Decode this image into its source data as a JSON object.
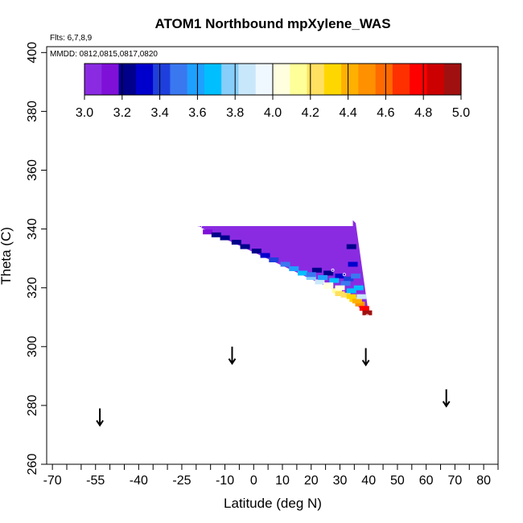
{
  "chart_data": {
    "type": "heatmap",
    "title": "ATOM1 Northbound mpXylene_WAS",
    "flights_note": "Flts: 6,7,8,9",
    "dates_note": "MMDD: 0812,0815,0817,0820",
    "xlabel": "Latitude (deg N)",
    "ylabel": "Theta (C)",
    "xlim": [
      -72,
      85
    ],
    "ylim": [
      260,
      402
    ],
    "xticks": [
      -70,
      -65,
      -60,
      -55,
      -50,
      -45,
      -40,
      -35,
      -30,
      -25,
      -20,
      -15,
      -10,
      -5,
      0,
      5,
      10,
      15,
      20,
      25,
      30,
      35,
      40,
      45,
      50,
      55,
      60,
      65,
      70,
      75,
      80,
      85
    ],
    "xtick_labels": [
      {
        "value": -70,
        "label": "-70"
      },
      {
        "value": -55,
        "label": "-55"
      },
      {
        "value": -40,
        "label": "-40"
      },
      {
        "value": -25,
        "label": "-25"
      },
      {
        "value": -10,
        "label": "-10"
      },
      {
        "value": 0,
        "label": "0"
      },
      {
        "value": 10,
        "label": "10"
      },
      {
        "value": 20,
        "label": "20"
      },
      {
        "value": 30,
        "label": "30"
      },
      {
        "value": 40,
        "label": "40"
      },
      {
        "value": 50,
        "label": "50"
      },
      {
        "value": 60,
        "label": "60"
      },
      {
        "value": 70,
        "label": "70"
      },
      {
        "value": 80,
        "label": "80"
      }
    ],
    "yticks": [
      260,
      280,
      300,
      320,
      340,
      360,
      380,
      400
    ],
    "colorbar": {
      "min": 3.0,
      "max": 5.0,
      "tick_labels": [
        "3.0",
        "3.2",
        "3.4",
        "3.6",
        "3.8",
        "4.0",
        "4.2",
        "4.4",
        "4.6",
        "4.8",
        "5.0"
      ],
      "colors": [
        "#8a2be2",
        "#7f10d8",
        "#00008b",
        "#0000cd",
        "#1e3fdc",
        "#3a78f0",
        "#1ea0ff",
        "#00bfff",
        "#87cefa",
        "#c9e7fb",
        "#f0f8ff",
        "#ffffe0",
        "#ffff99",
        "#ffe060",
        "#ffd700",
        "#ffb000",
        "#ff9000",
        "#ff6a00",
        "#ff3000",
        "#ff0000",
        "#cc0000",
        "#a01010"
      ]
    },
    "fill_region": {
      "description": "valid interpolation region",
      "vertices": [
        [
          -19.5,
          341
        ],
        [
          34.5,
          341
        ],
        [
          34.5,
          343
        ],
        [
          35.5,
          342
        ],
        [
          40,
          311
        ],
        [
          37,
          313
        ],
        [
          33,
          317
        ]
      ],
      "base_value": 3.0
    },
    "cells": [
      {
        "lat": -16,
        "theta": 339,
        "value": 3.1
      },
      {
        "lat": -13,
        "theta": 338,
        "value": 3.2
      },
      {
        "lat": -10,
        "theta": 337,
        "value": 3.2
      },
      {
        "lat": -6,
        "theta": 335.5,
        "value": 3.2
      },
      {
        "lat": -3,
        "theta": 334,
        "value": 3.2
      },
      {
        "lat": 1,
        "theta": 332.5,
        "value": 3.25
      },
      {
        "lat": 4,
        "theta": 331,
        "value": 3.3
      },
      {
        "lat": 7,
        "theta": 329.5,
        "value": 3.4
      },
      {
        "lat": 11,
        "theta": 328,
        "value": 3.5
      },
      {
        "lat": 14,
        "theta": 326.5,
        "value": 3.6
      },
      {
        "lat": 17,
        "theta": 325,
        "value": 3.7
      },
      {
        "lat": 20,
        "theta": 323.5,
        "value": 3.8
      },
      {
        "lat": 23,
        "theta": 322,
        "value": 3.9
      },
      {
        "lat": 26,
        "theta": 320.5,
        "value": 4.0
      },
      {
        "lat": 29,
        "theta": 319,
        "value": 4.1
      },
      {
        "lat": 32,
        "theta": 317.5,
        "value": 4.2
      },
      {
        "lat": 35,
        "theta": 316,
        "value": 4.3
      },
      {
        "lat": 37,
        "theta": 314.5,
        "value": 4.5
      },
      {
        "lat": 38.5,
        "theta": 313,
        "value": 4.8
      },
      {
        "lat": 39.5,
        "theta": 311.5,
        "value": 4.95
      },
      {
        "lat": 22,
        "theta": 326,
        "value": 3.2
      },
      {
        "lat": 26,
        "theta": 325,
        "value": 3.25
      },
      {
        "lat": 30,
        "theta": 324,
        "value": 3.3
      },
      {
        "lat": 33,
        "theta": 323,
        "value": 3.4
      },
      {
        "lat": 20,
        "theta": 324.5,
        "value": 3.5
      },
      {
        "lat": 24,
        "theta": 323.5,
        "value": 3.6
      },
      {
        "lat": 28,
        "theta": 322.5,
        "value": 3.7
      },
      {
        "lat": 32,
        "theta": 321.5,
        "value": 3.5
      },
      {
        "lat": 26,
        "theta": 321,
        "value": 4.05
      },
      {
        "lat": 30,
        "theta": 320,
        "value": 4.0
      },
      {
        "lat": 34,
        "theta": 319,
        "value": 3.7
      },
      {
        "lat": 30,
        "theta": 318,
        "value": 4.25
      },
      {
        "lat": 34,
        "theta": 317,
        "value": 4.3
      },
      {
        "lat": 36,
        "theta": 315.5,
        "value": 4.4
      },
      {
        "lat": 34,
        "theta": 334,
        "value": 3.2
      },
      {
        "lat": 34.5,
        "theta": 328,
        "value": 3.35
      },
      {
        "lat": 35.5,
        "theta": 324,
        "value": 3.5
      },
      {
        "lat": 36.5,
        "theta": 320,
        "value": 3.7
      },
      {
        "lat": 37.5,
        "theta": 317,
        "value": 3.9
      }
    ],
    "sample_points": [
      {
        "lat": -18.5,
        "theta": 341
      },
      {
        "lat": 27.5,
        "theta": 326
      },
      {
        "lat": 31.5,
        "theta": 324.5
      },
      {
        "lat": 34.5,
        "theta": 343.5
      },
      {
        "lat": 39.5,
        "theta": 310.5
      }
    ],
    "arrows": [
      {
        "lat": -53.5,
        "theta": 279
      },
      {
        "lat": -7.5,
        "theta": 300
      },
      {
        "lat": 39,
        "theta": 299.5
      },
      {
        "lat": 67,
        "theta": 285.5
      }
    ]
  }
}
